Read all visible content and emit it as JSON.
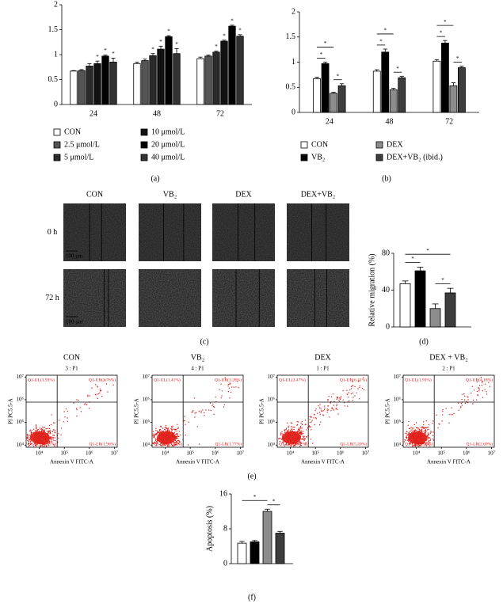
{
  "chart_data": [
    {
      "type": "bar",
      "panel_label": "(a)",
      "categories": [
        "24",
        "48",
        "72"
      ],
      "series": [
        {
          "name": "CON",
          "color": "#ffffff",
          "values": [
            0.67,
            0.82,
            0.92
          ],
          "errors": [
            0.01,
            0.03,
            0.03
          ],
          "markers": [
            null,
            null,
            null
          ]
        },
        {
          "name": "2.5 μmol/L",
          "color": "#555555",
          "values": [
            0.68,
            0.88,
            0.97
          ],
          "errors": [
            0.02,
            0.03,
            0.02
          ],
          "markers": [
            null,
            null,
            null
          ]
        },
        {
          "name": "5 μmol/L",
          "color": "#2b2b2b",
          "values": [
            0.77,
            0.98,
            1.05
          ],
          "errors": [
            0.05,
            0.04,
            0.02
          ],
          "markers": [
            null,
            "*",
            "*"
          ]
        },
        {
          "name": "10 μmol/L",
          "color": "#111111",
          "values": [
            0.82,
            1.11,
            1.27
          ],
          "errors": [
            0.05,
            0.06,
            0.02
          ],
          "markers": [
            "*",
            "*",
            "*"
          ]
        },
        {
          "name": "20 μmol/L",
          "color": "#000000",
          "values": [
            0.97,
            1.36,
            1.57
          ],
          "errors": [
            0.02,
            0.02,
            0.02
          ],
          "markers": [
            "*",
            "*",
            "*"
          ]
        },
        {
          "name": "40 μmol/L",
          "color": "#333333",
          "values": [
            0.85,
            1.02,
            1.37
          ],
          "errors": [
            0.08,
            0.1,
            0.03
          ],
          "markers": [
            "*",
            "*",
            "*"
          ]
        }
      ],
      "ylim": [
        0,
        2
      ],
      "yticks": [
        0,
        0.5,
        1,
        1.5,
        2
      ]
    },
    {
      "type": "bar",
      "panel_label": "(b)",
      "categories": [
        "24",
        "48",
        "72"
      ],
      "series": [
        {
          "name": "CON",
          "color": "#ffffff",
          "values": [
            0.67,
            0.82,
            1.02
          ],
          "errors": [
            0.03,
            0.03,
            0.03
          ]
        },
        {
          "name": "VB₂",
          "color": "#000000",
          "values": [
            0.97,
            1.2,
            1.38
          ],
          "errors": [
            0.03,
            0.06,
            0.05
          ]
        },
        {
          "name": "DEX",
          "color": "#8c8c8c",
          "values": [
            0.38,
            0.45,
            0.53
          ],
          "errors": [
            0.02,
            0.03,
            0.06
          ]
        },
        {
          "name": "DEX+VB₂ (ibid.)",
          "color": "#3d3d3d",
          "values": [
            0.53,
            0.69,
            0.89
          ],
          "errors": [
            0.04,
            0.03,
            0.03
          ]
        }
      ],
      "annotations": [
        "*",
        "*",
        "*",
        "*",
        "*",
        "*",
        "*",
        "*",
        "*"
      ],
      "ylim": [
        0,
        2
      ],
      "yticks": [
        0,
        0.5,
        1,
        1.5,
        2
      ]
    },
    {
      "type": "bar",
      "panel_label": "(d)",
      "ylabel": "Relative migration (%)",
      "values": [
        47,
        61,
        20,
        37
      ],
      "errors": [
        3,
        4,
        5,
        5
      ],
      "colors": [
        "#ffffff",
        "#000000",
        "#8c8c8c",
        "#3d3d3d"
      ],
      "annotations": [
        "*",
        "*",
        "*"
      ],
      "ylim": [
        0,
        80
      ],
      "yticks": [
        0,
        40,
        80
      ]
    },
    {
      "type": "bar",
      "panel_label": "(f)",
      "ylabel": "Apoptosis (%)",
      "values": [
        4.7,
        5.0,
        12,
        7.0
      ],
      "errors": [
        0.4,
        0.3,
        0.5,
        0.4
      ],
      "colors": [
        "#ffffff",
        "#000000",
        "#8c8c8c",
        "#3d3d3d"
      ],
      "annotations": [
        "*",
        "*"
      ],
      "ylim": [
        0,
        16
      ],
      "yticks": [
        0,
        8,
        16
      ]
    }
  ],
  "micrographs": {
    "panel_label": "(c)",
    "column_labels": [
      "CON",
      "VB₂",
      "DEX",
      "DEX+VB₂"
    ],
    "row_labels": [
      "0 h",
      "72 h"
    ],
    "scale_bar": "100 μm"
  },
  "flow_cytometry": {
    "panel_label": "(e)",
    "xlabel": "Annexin V FITC-A",
    "ylabel": "PI PC5.5-A",
    "log_scale": true,
    "xlim": [
      3000,
      13000000
    ],
    "ylim": [
      8000,
      12000000
    ],
    "xticks": [
      {
        "value": 10000,
        "label": "10⁴"
      },
      {
        "value": 100000,
        "label": "10⁵"
      },
      {
        "value": 1000000,
        "label": "10⁶"
      },
      {
        "value": 10000000,
        "label": "10⁷"
      }
    ],
    "yticks": [
      {
        "value": 10000,
        "label": "10⁴"
      },
      {
        "value": 100000,
        "label": "10⁵"
      },
      {
        "value": 1000000,
        "label": "10⁶"
      },
      {
        "value": 10000000,
        "label": "10⁷"
      }
    ],
    "gate": {
      "x": 52000,
      "y": 780000
    },
    "panels": [
      {
        "title": "CON",
        "gate_name": "3 : P1",
        "UL": "Q1-UL(1.93%)",
        "UR": "Q1-UR(2.76%)",
        "LL": "Q1-LL(93.35%)",
        "LR": "Q1-LR(1.96%)"
      },
      {
        "title": "VB₂",
        "gate_name": "4 : P1",
        "UL": "Q1-UL(1.41%)",
        "UR": "Q1-UR(3.28%)",
        "LL": "Q1-LL(93.54%)",
        "LR": "Q1-LR(1.77%)"
      },
      {
        "title": "DEX",
        "gate_name": "1 : P1",
        "UL": "Q1-UL(3.47%)",
        "UR": "Q1-UR(6.31%)",
        "LL": "Q1-LL(85.02%)",
        "LR": "Q1-LR(5.20%)"
      },
      {
        "title": "DEX + VB₂",
        "gate_name": "2 : P1",
        "UL": "Q1-UL(1.93%)",
        "UR": "Q1-UR(4.18%)",
        "LL": "Q1-LL(91.20%)",
        "LR": "Q1-LR(2.69%)"
      }
    ]
  }
}
